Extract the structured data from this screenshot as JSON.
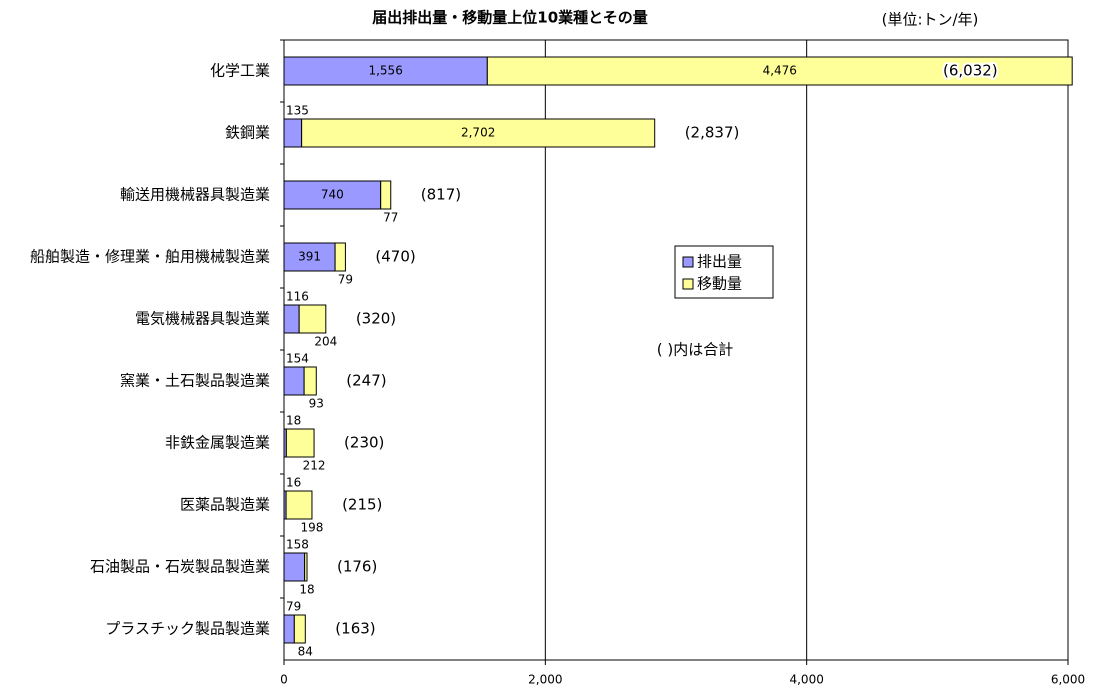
{
  "chart_data": {
    "type": "stacked_barh",
    "title": "届出排出量・移動量上位10業種とその量",
    "subtitle": "(単位:トン/年)",
    "annotation": "(  )内は合計",
    "categories": [
      "化学工業",
      "鉄鋼業",
      "輸送用機械器具製造業",
      "船舶製造・修理業・舶用機械製造業",
      "電気機械器具製造業",
      "窯業・土石製品製造業",
      "非鉄金属製造業",
      "医薬品製造業",
      "石油製品・石炭製品製造業",
      "プラスチック製品製造業"
    ],
    "series": [
      {
        "name": "排出量",
        "color": "#9999ff",
        "values": [
          1556,
          135,
          740,
          391,
          116,
          154,
          18,
          16,
          158,
          79
        ],
        "value_labels": [
          "1,556",
          "135",
          "740",
          "391",
          "116",
          "154",
          "18",
          "16",
          "158",
          "79"
        ]
      },
      {
        "name": "移動量",
        "color": "#ffff99",
        "values": [
          4476,
          2702,
          77,
          79,
          204,
          93,
          212,
          198,
          18,
          84
        ],
        "value_labels": [
          "4,476",
          "2,702",
          "77",
          "79",
          "204",
          "93",
          "212",
          "198",
          "18",
          "84"
        ]
      }
    ],
    "totals": {
      "values": [
        6032,
        2837,
        817,
        470,
        320,
        247,
        230,
        215,
        176,
        163
      ],
      "value_labels": [
        "(6,032)",
        "(2,837)",
        "(817)",
        "(470)",
        "(320)",
        "(247)",
        "(230)",
        "(215)",
        "(176)",
        "(163)"
      ]
    },
    "xlim": [
      0,
      6000
    ],
    "xticks": [
      0,
      {
        "value": 2000,
        "label": "2,000"
      },
      {
        "value": 4000,
        "label": "4,000"
      },
      {
        "value": 6000,
        "label": "6,000"
      }
    ],
    "grid": true,
    "legend": "center"
  }
}
